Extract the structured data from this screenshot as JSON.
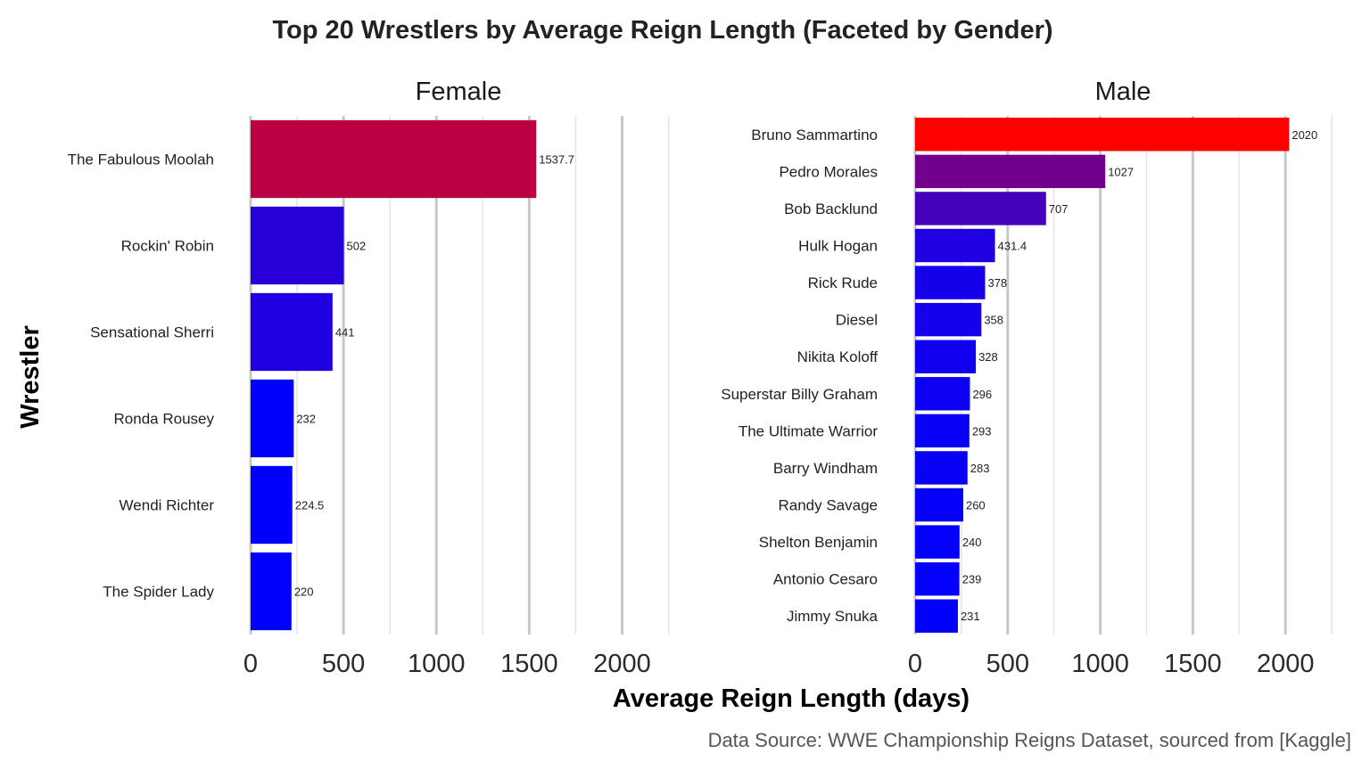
{
  "chart_data": {
    "type": "bar",
    "orientation": "horizontal",
    "title": "Top 20 Wrestlers by Average Reign Length (Faceted by Gender)",
    "xlabel": "Average Reign Length (days)",
    "ylabel": "Wrestler",
    "caption": "Data Source: WWE Championship Reigns Dataset, sourced from [Kaggle]",
    "xlim": [
      0,
      2250
    ],
    "x_ticks": [
      "0",
      "500",
      "1000",
      "1500",
      "2000"
    ],
    "grid": true,
    "legend": "none",
    "color_scale": {
      "low": "#0000ff",
      "high": "#ff0000",
      "min": 220,
      "max": 2020
    },
    "facets": [
      {
        "name": "Female",
        "categories": [
          "The Fabulous Moolah",
          "Rockin' Robin",
          "Sensational Sherri",
          "Ronda Rousey",
          "Wendi Richter",
          "The Spider Lady"
        ],
        "values": [
          1537.7,
          502,
          441,
          232,
          224.5,
          220
        ],
        "value_labels": [
          "1537.7",
          "502",
          "441",
          "232",
          "224.5",
          "220"
        ]
      },
      {
        "name": "Male",
        "categories": [
          "Bruno Sammartino",
          "Pedro Morales",
          "Bob Backlund",
          "Hulk Hogan",
          "Rick Rude",
          "Diesel",
          "Nikita Koloff",
          "Superstar Billy Graham",
          "The Ultimate Warrior",
          "Barry Windham",
          "Randy Savage",
          "Shelton Benjamin",
          "Antonio Cesaro",
          "Jimmy Snuka"
        ],
        "values": [
          2020,
          1027,
          707,
          431.4,
          378,
          358,
          328,
          296,
          293,
          283,
          260,
          240,
          239,
          231
        ],
        "value_labels": [
          "2020",
          "1027",
          "707",
          "431.4",
          "378",
          "358",
          "328",
          "296",
          "293",
          "283",
          "260",
          "240",
          "239",
          "231"
        ]
      }
    ]
  }
}
